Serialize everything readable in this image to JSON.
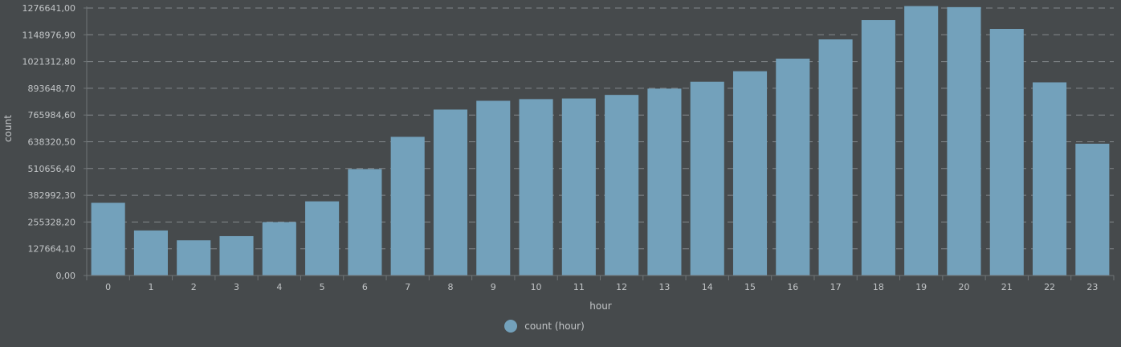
{
  "chart_data": {
    "type": "bar",
    "x": [
      0,
      1,
      2,
      3,
      4,
      5,
      6,
      7,
      8,
      9,
      10,
      11,
      12,
      13,
      14,
      15,
      16,
      17,
      18,
      19,
      20,
      21,
      22,
      23
    ],
    "series": [
      {
        "name": "count (hour)",
        "color": "#73a1bb",
        "values": [
          347000,
          215000,
          168000,
          188000,
          255000,
          354000,
          508000,
          662000,
          792000,
          834000,
          842000,
          845000,
          862000,
          892000,
          925000,
          975000,
          1035000,
          1127000,
          1219000,
          1286000,
          1281000,
          1177000,
          922000,
          629000
        ]
      }
    ],
    "xlabel": "hour",
    "ylabel": "count",
    "ylim": [
      0,
      1276641.0
    ],
    "yticks": [
      "0,00",
      "127664,10",
      "255328,20",
      "382992,30",
      "510656,40",
      "638320,50",
      "765984,60",
      "893648,70",
      "1021312,80",
      "1148976,90",
      "1276641,00"
    ],
    "grid": true,
    "legend_position": "bottom-center"
  },
  "legend": {
    "label": "count (hour)"
  }
}
